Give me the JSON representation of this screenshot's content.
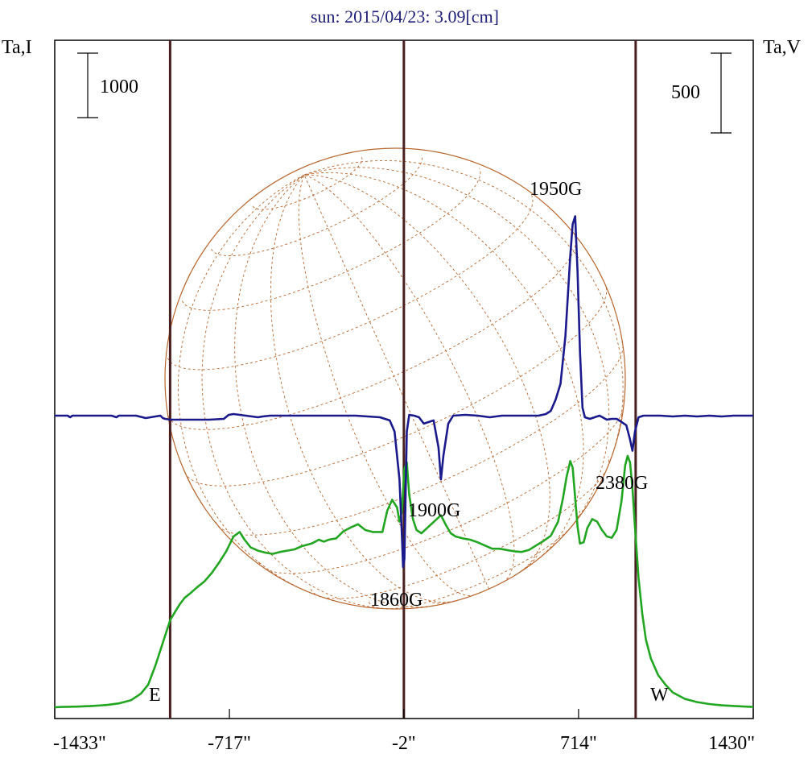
{
  "chart_data": {
    "type": "line",
    "title": "sun: 2015/04/23: 3.09[cm]",
    "ylabel_left": "Ta,I",
    "ylabel_right": "Ta,V",
    "x_ticks": [
      "-1433\"",
      "-717\"",
      "-2\"",
      "714\"",
      "1430\""
    ],
    "x_tick_values": [
      -1433,
      -717,
      -2,
      714,
      1430
    ],
    "xlim": [
      -1433,
      1430
    ],
    "scale_bar_left": "1000",
    "scale_bar_right": "500",
    "limb_labels": {
      "east": "E",
      "west": "W"
    },
    "vertical_markers": [
      -960,
      -2,
      948
    ],
    "colors": {
      "intensity": "#22a622",
      "polarization": "#1a1a8c",
      "markers": "#4a1f1f",
      "disk": "#b8672e",
      "frame": "#000000"
    },
    "annotations": [
      {
        "text": "1950G",
        "x": 710
      },
      {
        "text": "1900G",
        "x": 150
      },
      {
        "text": "2380G",
        "x": 935
      },
      {
        "text": "1860G",
        "x": 0
      }
    ],
    "series": [
      {
        "name": "Ta,I",
        "axis": "left",
        "x": [
          -1433,
          -1400,
          -1340,
          -1280,
          -1220,
          -1170,
          -1120,
          -1080,
          -1050,
          -1020,
          -990,
          -960,
          -940,
          -920,
          -900,
          -880,
          -850,
          -820,
          -790,
          -760,
          -730,
          -700,
          -675,
          -655,
          -630,
          -600,
          -570,
          -540,
          -510,
          -480,
          -450,
          -420,
          -380,
          -350,
          -330,
          -310,
          -280,
          -250,
          -220,
          -190,
          -160,
          -130,
          -90,
          -70,
          -50,
          -30,
          -20,
          -10,
          0,
          10,
          20,
          35,
          50,
          70,
          90,
          110,
          130,
          150,
          170,
          190,
          210,
          240,
          270,
          300,
          330,
          360,
          390,
          420,
          450,
          480,
          510,
          540,
          570,
          600,
          630,
          650,
          665,
          680,
          690,
          700,
          710,
          720,
          735,
          750,
          770,
          790,
          810,
          830,
          850,
          870,
          890,
          905,
          915,
          925,
          935,
          945,
          960,
          975,
          990,
          1010,
          1040,
          1070,
          1100,
          1150,
          1200,
          1250,
          1300,
          1350,
          1400,
          1430
        ],
        "y": [
          0,
          5,
          10,
          20,
          35,
          60,
          110,
          210,
          350,
          650,
          1000,
          1350,
          1480,
          1600,
          1700,
          1760,
          1860,
          1950,
          2080,
          2240,
          2420,
          2650,
          2720,
          2600,
          2480,
          2430,
          2400,
          2380,
          2410,
          2430,
          2450,
          2500,
          2540,
          2600,
          2570,
          2600,
          2620,
          2730,
          2790,
          2840,
          2750,
          2720,
          2720,
          3050,
          3220,
          3100,
          2880,
          3040,
          3700,
          3800,
          3300,
          2920,
          2750,
          2700,
          2770,
          2840,
          2910,
          2980,
          2830,
          2700,
          2650,
          2620,
          2600,
          2560,
          2510,
          2460,
          2460,
          2440,
          2420,
          2410,
          2440,
          2510,
          2580,
          2660,
          2880,
          3240,
          3580,
          3820,
          3720,
          3250,
          2800,
          2540,
          2560,
          2780,
          2920,
          2880,
          2750,
          2650,
          2630,
          2750,
          3200,
          3750,
          3900,
          3800,
          3400,
          2800,
          2000,
          1450,
          1050,
          760,
          500,
          350,
          230,
          130,
          80,
          50,
          30,
          20,
          10,
          5
        ]
      },
      {
        "name": "Ta,V",
        "axis": "right",
        "x": [
          -1433,
          -1380,
          -1370,
          -1360,
          -1300,
          -1200,
          -1180,
          -1170,
          -1100,
          -1060,
          -1000,
          -990,
          -980,
          -960,
          -900,
          -850,
          -800,
          -740,
          -720,
          -700,
          -650,
          -600,
          -580,
          -550,
          -500,
          -450,
          -400,
          -300,
          -200,
          -100,
          -60,
          -40,
          -20,
          -10,
          -5,
          0,
          5,
          10,
          20,
          40,
          60,
          80,
          100,
          120,
          140,
          150,
          160,
          180,
          200,
          250,
          300,
          350,
          400,
          450,
          500,
          550,
          580,
          600,
          620,
          640,
          660,
          680,
          690,
          700,
          710,
          720,
          730,
          740,
          760,
          780,
          800,
          830,
          850,
          870,
          890,
          910,
          925,
          935,
          945,
          960,
          980,
          1000,
          1050,
          1100,
          1150,
          1200,
          1250,
          1300,
          1350,
          1400,
          1430
        ],
        "y": [
          0,
          0,
          -10,
          0,
          0,
          0,
          -10,
          0,
          0,
          -15,
          0,
          -15,
          -20,
          -25,
          -25,
          -25,
          -25,
          -20,
          5,
          10,
          0,
          -10,
          -5,
          0,
          0,
          0,
          0,
          0,
          0,
          -10,
          -30,
          -100,
          -400,
          -750,
          -950,
          -900,
          -500,
          -100,
          5,
          0,
          -10,
          -50,
          -40,
          -30,
          -200,
          -400,
          -250,
          -50,
          0,
          5,
          0,
          -10,
          0,
          0,
          0,
          0,
          10,
          30,
          100,
          200,
          500,
          1000,
          1200,
          1250,
          900,
          400,
          50,
          -10,
          -20,
          -10,
          0,
          -25,
          -20,
          -20,
          -40,
          -60,
          -150,
          -220,
          -100,
          -10,
          0,
          0,
          0,
          -5,
          0,
          -5,
          0,
          -5,
          0,
          0,
          0
        ]
      }
    ]
  }
}
